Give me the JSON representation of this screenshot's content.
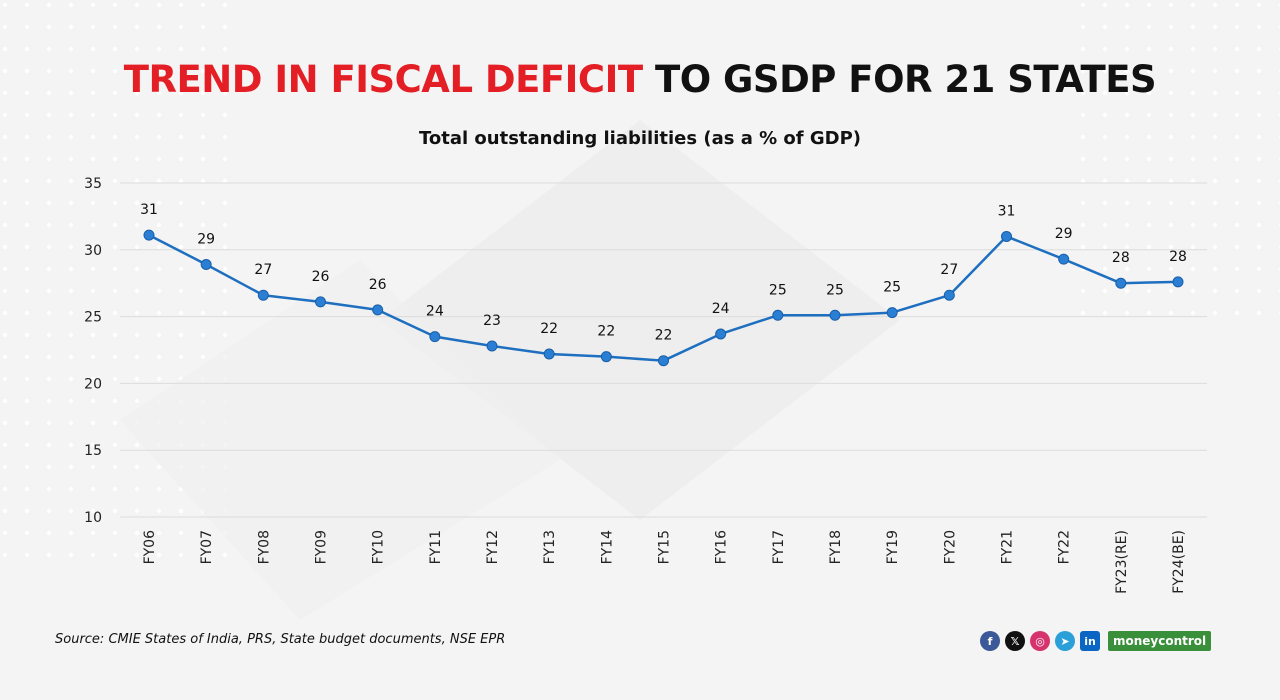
{
  "title": {
    "highlight": "TREND IN FISCAL DEFICIT",
    "rest": "TO GSDP FOR 21 STATES"
  },
  "subtitle": "Total outstanding liabilities (as a % of GDP)",
  "source": "Source: CMIE States of India, PRS, State budget documents, NSE EPR",
  "brand": "moneycontrol",
  "social_icons": [
    "facebook-icon",
    "x-icon",
    "instagram-icon",
    "telegram-icon",
    "linkedin-icon"
  ],
  "colors": {
    "highlight": "#e31e24",
    "line": "#1e6fc0",
    "marker": "#2a7fd4",
    "grid": "#dcdcdc",
    "brand": "#3a8f3a"
  },
  "chart_data": {
    "type": "line",
    "title": "TREND IN FISCAL DEFICIT TO GSDP FOR 21 STATES",
    "subtitle": "Total outstanding liabilities (as a % of GDP)",
    "xlabel": "",
    "ylabel": "",
    "categories": [
      "FY06",
      "FY07",
      "FY08",
      "FY09",
      "FY10",
      "FY11",
      "FY12",
      "FY13",
      "FY14",
      "FY15",
      "FY16",
      "FY17",
      "FY18",
      "FY19",
      "FY20",
      "FY21",
      "FY22",
      "FY23(RE)",
      "FY24(BE)"
    ],
    "values": [
      31.1,
      28.9,
      26.6,
      26.1,
      25.5,
      23.5,
      22.8,
      22.2,
      22.0,
      21.7,
      23.7,
      25.1,
      25.1,
      25.3,
      26.6,
      31.0,
      29.3,
      27.5,
      27.6
    ],
    "data_labels": [
      "31",
      "29",
      "27",
      "26",
      "26",
      "24",
      "23",
      "22",
      "22",
      "22",
      "24",
      "25",
      "25",
      "25",
      "27",
      "31",
      "29",
      "28",
      "28"
    ],
    "ylim": [
      10,
      35
    ],
    "yticks": [
      10,
      15,
      20,
      25,
      30,
      35
    ],
    "grid": true,
    "legend": "none"
  }
}
